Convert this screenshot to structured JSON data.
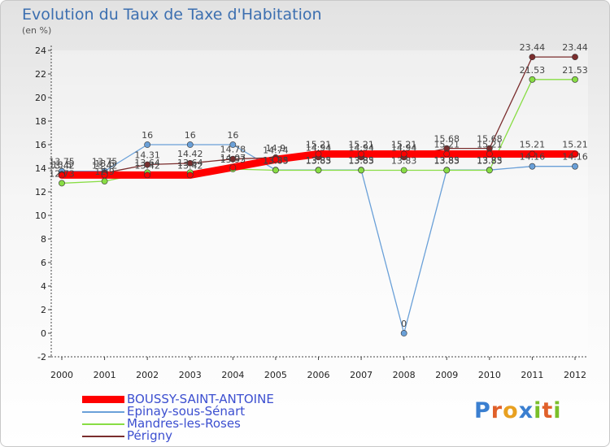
{
  "chart_data": {
    "type": "line",
    "title": "Evolution du Taux de Taxe d'Habitation",
    "ylabel": "(en %)",
    "xlabel": "",
    "ylim": [
      -2,
      24
    ],
    "yticks": [
      "-2",
      "0",
      "2",
      "4",
      "6",
      "8",
      "10",
      "12",
      "14",
      "16",
      "18",
      "20",
      "22",
      "24"
    ],
    "categories": [
      "2000",
      "2001",
      "2002",
      "2003",
      "2004",
      "2005",
      "2006",
      "2007",
      "2008",
      "2009",
      "2010",
      "2011",
      "2012"
    ],
    "series": [
      {
        "name": "BOUSSY-SAINT-ANTOINE",
        "color": "#ff0000",
        "values": [
          13.42,
          13.42,
          13.42,
          13.42,
          14.07,
          14.74,
          15.21,
          15.21,
          15.21,
          15.21,
          15.21,
          15.21,
          15.21
        ],
        "labels": [
          "13.42",
          "13.42",
          "13.42",
          "13.42",
          "14.07",
          "14.74",
          "15.21",
          "15.21",
          "15.21",
          "15.21",
          "15.21",
          "15.21",
          "15.21"
        ]
      },
      {
        "name": "Epinay-sous-Sénart",
        "color": "#6aa0d8",
        "values": [
          13.75,
          13.75,
          16,
          16,
          16,
          13.85,
          13.85,
          13.85,
          0,
          13.85,
          13.85,
          14.16,
          14.16
        ],
        "labels": [
          "13.75",
          "13.75",
          "16",
          "16",
          "16",
          "13.85",
          "13.85",
          "13.85",
          "0",
          "13.85",
          "13.85",
          "14.16",
          "14.16"
        ]
      },
      {
        "name": "Mandres-les-Roses",
        "color": "#88dd44",
        "values": [
          12.73,
          12.9,
          13.64,
          13.64,
          13.93,
          13.83,
          13.83,
          13.83,
          13.83,
          13.83,
          13.83,
          21.53,
          21.53
        ],
        "labels": [
          "12.73",
          "12.9",
          "13.64",
          "13.64",
          "13.93",
          "13.83",
          "13.83",
          "13.83",
          "13.83",
          "13.83",
          "13.83",
          "21.53",
          "21.53"
        ]
      },
      {
        "name": "Périgny",
        "color": "#7a2d2d",
        "values": [
          13.5,
          13.6,
          14.31,
          14.42,
          14.78,
          14.9,
          14.94,
          14.94,
          14.94,
          15.68,
          15.68,
          23.44,
          23.44
        ],
        "labels": [
          "13.5",
          "13.6",
          "14.31",
          "14.42",
          "14.78",
          "14.9",
          "14.94",
          "14.94",
          "14.94",
          "15.68",
          "15.68",
          "23.44",
          "23.44"
        ]
      }
    ]
  },
  "legend": [
    {
      "label": "BOUSSY-SAINT-ANTOINE",
      "color": "#ff0000"
    },
    {
      "label": "Epinay-sous-Sénart",
      "color": "#6aa0d8"
    },
    {
      "label": "Mandres-les-Roses",
      "color": "#88dd44"
    },
    {
      "label": "Périgny",
      "color": "#7a2d2d"
    }
  ],
  "branding": {
    "logo_text": "Proxiti"
  }
}
